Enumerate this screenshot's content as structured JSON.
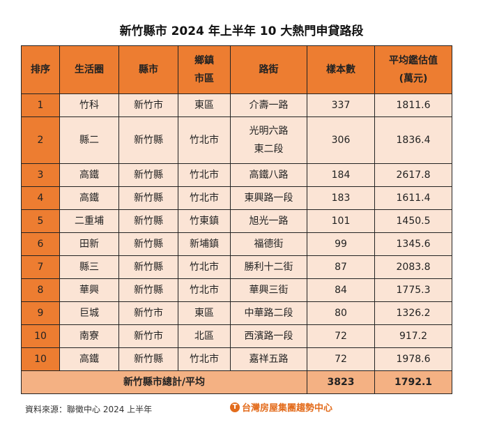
{
  "title": "新竹縣市 2024 年上半年 10 大熱門申貸路段",
  "headers": [
    "排序",
    "生活圈",
    "縣市",
    "鄉鎮\n市區",
    "路街",
    "樣本數",
    "平均鑑估值\n(萬元)"
  ],
  "rows": [
    [
      "1",
      "竹科",
      "新竹市",
      "東區",
      "介壽一路",
      "337",
      "1811.6"
    ],
    [
      "2",
      "縣二",
      "新竹縣",
      "竹北市",
      "光明六路\n東二段",
      "306",
      "1836.4"
    ],
    [
      "3",
      "高鐵",
      "新竹縣",
      "竹北市",
      "高鐵八路",
      "184",
      "2617.8"
    ],
    [
      "4",
      "高鐵",
      "新竹縣",
      "竹北市",
      "東興路一段",
      "183",
      "1611.4"
    ],
    [
      "5",
      "二重埔",
      "新竹縣",
      "竹東鎮",
      "旭光一路",
      "101",
      "1450.5"
    ],
    [
      "6",
      "田新",
      "新竹縣",
      "新埔鎮",
      "福德街",
      "99",
      "1345.6"
    ],
    [
      "7",
      "縣三",
      "新竹縣",
      "竹北市",
      "勝利十二街",
      "87",
      "2083.8"
    ],
    [
      "8",
      "華興",
      "新竹縣",
      "竹北市",
      "華興三街",
      "84",
      "1775.3"
    ],
    [
      "9",
      "巨城",
      "新竹市",
      "東區",
      "中華路二段",
      "80",
      "1326.2"
    ],
    [
      "10",
      "南寮",
      "新竹市",
      "北區",
      "西濱路一段",
      "72",
      "917.2"
    ],
    [
      "10",
      "高鐵",
      "新竹縣",
      "竹北市",
      "嘉祥五路",
      "72",
      "1978.6"
    ]
  ],
  "total": {
    "label": "新竹縣市總計/平均",
    "count": "3823",
    "avg": "1792.1"
  },
  "source": "資料來源：聯徵中心 2024 上半年",
  "logo": "台灣房屋集團趨勢中心",
  "colors": {
    "header": "#ed7d31",
    "cell": "#fbe4d5",
    "total": "#f4b183"
  }
}
